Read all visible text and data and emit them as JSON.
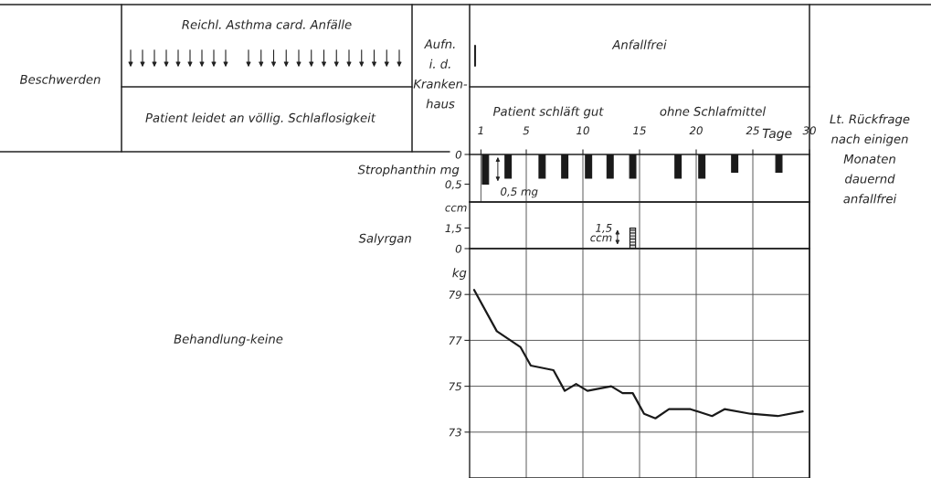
{
  "chart_data": [
    {
      "type": "bar",
      "ylabel": "Strophanthin mg",
      "xlabel": "Tage",
      "x": [
        1.4,
        3.4,
        6.4,
        8.4,
        10.5,
        12.4,
        14.4,
        18.4,
        20.5,
        23.4,
        27.3
      ],
      "values": [
        0.5,
        0.4,
        0.4,
        0.4,
        0.4,
        0.4,
        0.4,
        0.4,
        0.4,
        0.3,
        0.3
      ],
      "color": "#1a1a1a",
      "xlim": [
        0,
        30
      ],
      "xticks": [
        1,
        5,
        10,
        15,
        20,
        25,
        30
      ],
      "ylim": [
        0.8,
        0
      ],
      "yticks": [
        0,
        {
          "value": 0.5,
          "label": "0,5"
        }
      ],
      "grid": "x",
      "annotations": [
        "0,5 mg"
      ]
    },
    {
      "type": "bar",
      "ylabel": "Salyrgan",
      "x": [
        14.4
      ],
      "values": [
        1.5
      ],
      "color": "#1a1a1a",
      "xlim": [
        0,
        30
      ],
      "xticks": [
        5,
        10,
        15,
        20,
        25
      ],
      "ylim": [
        0,
        3.4
      ],
      "yticks": [
        0,
        {
          "value": 1.5,
          "label": "1,5"
        }
      ],
      "grid": "x",
      "tick_labels": "y",
      "annotations": [
        "ccm",
        "1,5\nccm"
      ]
    },
    {
      "type": "line",
      "ylabel": "kg",
      "x": [
        0.4,
        2.4,
        3.6,
        4.5,
        5.4,
        7.4,
        8.4,
        9.4,
        10.4,
        12.5,
        13.5,
        14.4,
        15.4,
        16.4,
        17.6,
        19.5,
        21.4,
        22.5,
        24.8,
        27.2,
        29.4
      ],
      "values": [
        79.2,
        77.4,
        77.0,
        76.7,
        75.9,
        75.7,
        74.8,
        75.1,
        74.8,
        75.0,
        74.7,
        74.7,
        73.8,
        73.6,
        74.0,
        74.0,
        73.7,
        74.0,
        73.8,
        73.7,
        73.9
      ],
      "color": "#1a1a1a",
      "xlim": [
        0,
        30
      ],
      "xticks": [
        5,
        10,
        15,
        20,
        25
      ],
      "ylim": [
        71,
        81
      ],
      "yticks": [
        73,
        75,
        77,
        79
      ],
      "grid": true,
      "tick_labels": "y"
    },
    {
      "type": "other",
      "annotations": [
        "Beschwerden",
        "Reichl. Asthma card. Anfälle",
        "Patient leidet an völlig. Schlaflosigkeit",
        "Aufn.\ni. d.\nKranken-\nhaus",
        "Anfallfrei",
        "Patient schläft gut",
        "ohne Schlafmittel",
        "Lt. Rückfrage\nnach einigen\nMonaten\ndauernd\nanfallfrei",
        "Behandlung-keine"
      ]
    }
  ]
}
